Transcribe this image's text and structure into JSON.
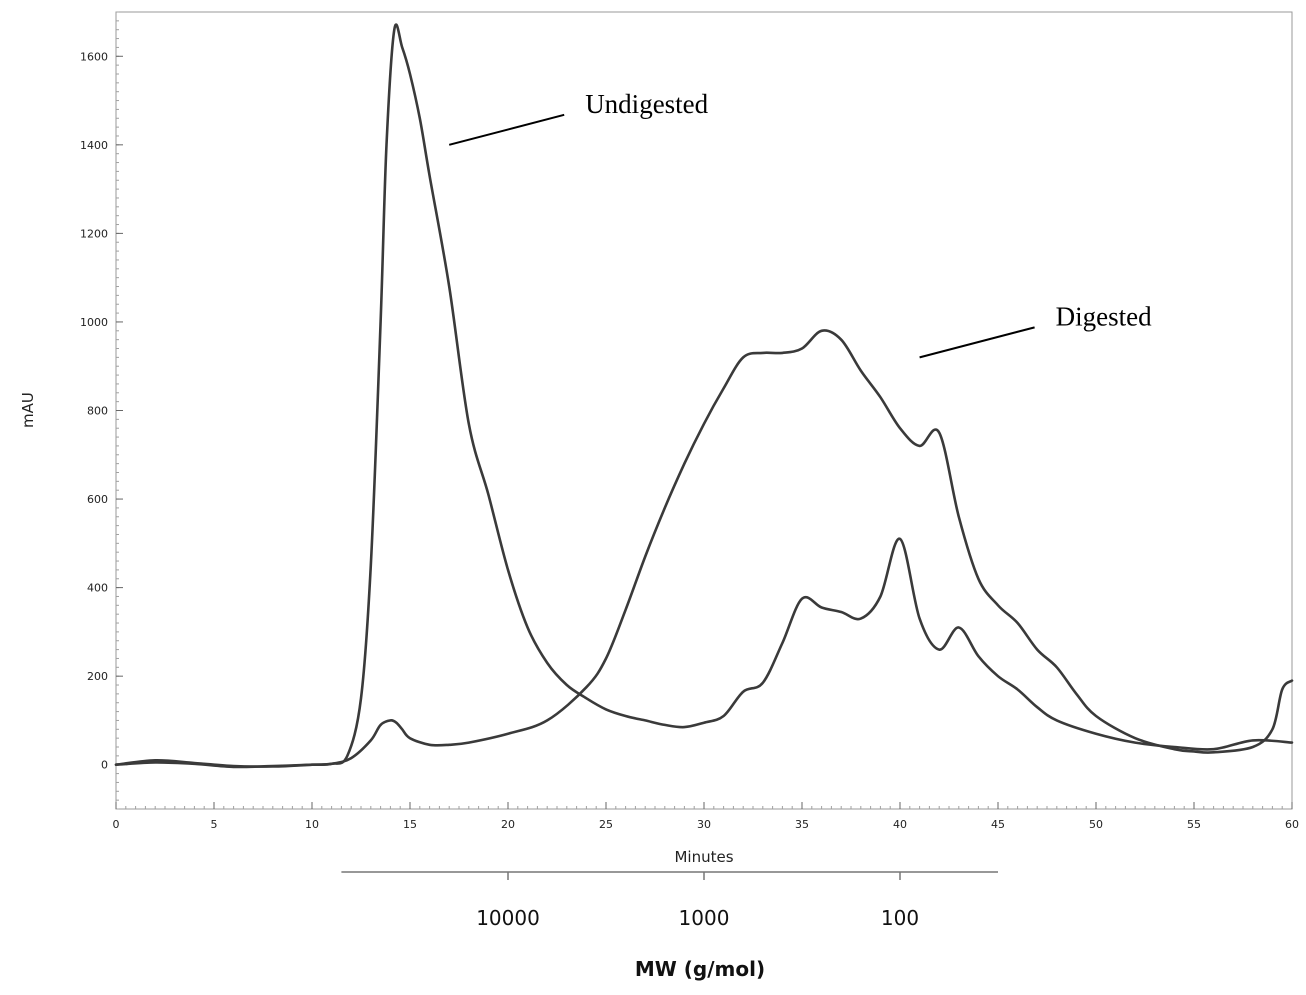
{
  "chart_data": {
    "type": "line",
    "xlabel": "Minutes",
    "ylabel": "mAU",
    "xlim": [
      0,
      60
    ],
    "ylim": [
      -100,
      1700
    ],
    "x_ticks": [
      0,
      5,
      10,
      15,
      20,
      25,
      30,
      35,
      40,
      45,
      50,
      55,
      60
    ],
    "y_ticks": [
      0,
      200,
      400,
      600,
      800,
      1000,
      1200,
      1400,
      1600
    ],
    "grid": false,
    "secondary_axis": {
      "title": "MW (g/mol)",
      "ticks": [
        {
          "label": "10000",
          "minutes": 20
        },
        {
          "label": "1000",
          "minutes": 30
        },
        {
          "label": "100",
          "minutes": 40
        }
      ],
      "range_minutes": [
        11.5,
        45
      ]
    },
    "annotations": [
      {
        "text": "Undigested",
        "series": "Undigested",
        "minutes": 17,
        "value": 1400
      },
      {
        "text": "Digested",
        "series": "Digested",
        "minutes": 41,
        "value": 920
      }
    ],
    "series": [
      {
        "name": "Undigested",
        "x": [
          0,
          2,
          4,
          6,
          8,
          10,
          11,
          11.8,
          12.5,
          13,
          13.5,
          13.8,
          14.2,
          14.6,
          15,
          15.5,
          16,
          17,
          18,
          19,
          20,
          21,
          22,
          23,
          24,
          25,
          26,
          27,
          28,
          29,
          30,
          31,
          32,
          33,
          34,
          35,
          36,
          37,
          38,
          39,
          40,
          41,
          42,
          43,
          44,
          45,
          46,
          47,
          48,
          50,
          52,
          54,
          56,
          58,
          60
        ],
        "y": [
          0,
          5,
          2,
          -5,
          -3,
          0,
          2,
          20,
          150,
          450,
          1000,
          1400,
          1660,
          1620,
          1560,
          1460,
          1330,
          1080,
          770,
          610,
          440,
          310,
          230,
          180,
          150,
          125,
          110,
          100,
          90,
          85,
          95,
          110,
          165,
          185,
          275,
          375,
          355,
          345,
          330,
          380,
          510,
          330,
          260,
          310,
          245,
          200,
          170,
          130,
          100,
          70,
          50,
          40,
          35,
          55,
          50
        ]
      },
      {
        "name": "Digested",
        "x": [
          0,
          2,
          4,
          6,
          8,
          10,
          11,
          12,
          13,
          13.5,
          14,
          14.3,
          14.6,
          15,
          16,
          17,
          18,
          20,
          22,
          24,
          25,
          26,
          27,
          28,
          29,
          30,
          31,
          32,
          33,
          34,
          35,
          36,
          37,
          38,
          39,
          40,
          41,
          42,
          43,
          44,
          45,
          46,
          47,
          48,
          49,
          50,
          52,
          54,
          55,
          56,
          58,
          59,
          59.5,
          60
        ],
        "y": [
          0,
          10,
          4,
          -3,
          -4,
          0,
          2,
          15,
          55,
          90,
          100,
          95,
          80,
          60,
          45,
          45,
          50,
          70,
          100,
          175,
          240,
          350,
          470,
          580,
          680,
          770,
          850,
          920,
          930,
          930,
          940,
          980,
          960,
          890,
          830,
          760,
          720,
          750,
          560,
          420,
          360,
          320,
          260,
          220,
          160,
          110,
          60,
          35,
          30,
          28,
          40,
          80,
          170,
          190
        ]
      }
    ]
  }
}
